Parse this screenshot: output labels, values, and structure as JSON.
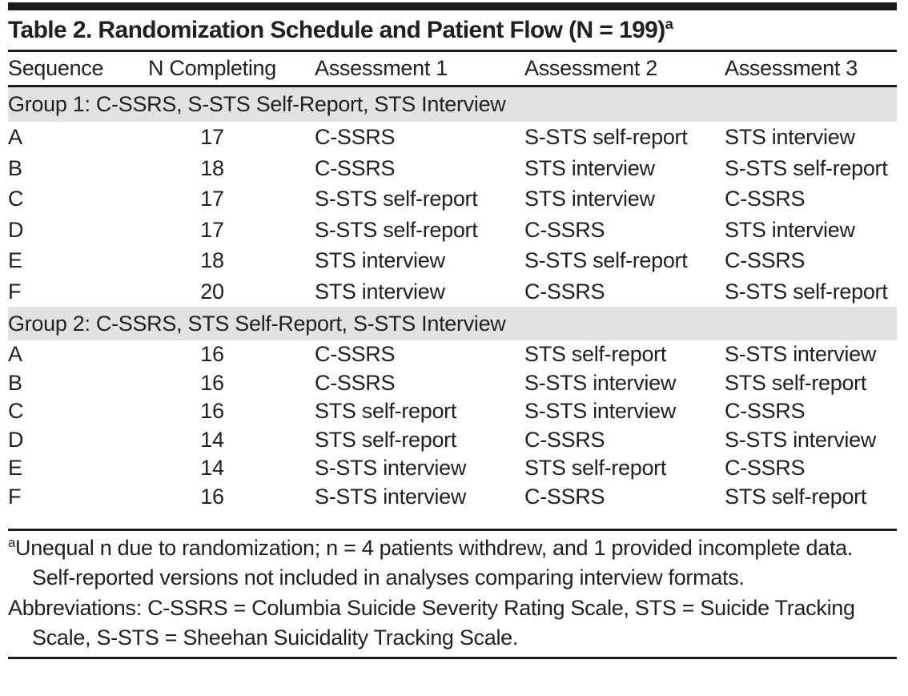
{
  "title": {
    "text": "Table 2. Randomization Schedule and Patient Flow (N = 199)",
    "superscript": "a"
  },
  "header": {
    "columns": [
      "Sequence",
      "N Completing",
      "Assessment 1",
      "Assessment 2",
      "Assessment 3"
    ]
  },
  "group1": {
    "label": "Group 1: C-SSRS, S-STS Self-Report, STS Interview",
    "rows": [
      [
        "A",
        "17",
        "C-SSRS",
        "S-STS self-report",
        "STS interview"
      ],
      [
        "B",
        "18",
        "C-SSRS",
        "STS interview",
        "S-STS self-report"
      ],
      [
        "C",
        "17",
        "S-STS self-report",
        "STS interview",
        "C-SSRS"
      ],
      [
        "D",
        "17",
        "S-STS self-report",
        "C-SSRS",
        "STS interview"
      ],
      [
        "E",
        "18",
        "STS interview",
        "S-STS self-report",
        "C-SSRS"
      ],
      [
        "F",
        "20",
        "STS interview",
        "C-SSRS",
        "S-STS self-report"
      ]
    ]
  },
  "group2": {
    "label": "Group 2: C-SSRS, STS Self-Report, S-STS Interview",
    "rows": [
      [
        "A",
        "16",
        "C-SSRS",
        "STS self-report",
        "S-STS interview"
      ],
      [
        "B",
        "16",
        "C-SSRS",
        "S-STS interview",
        "STS self-report"
      ],
      [
        "C",
        "16",
        "STS self-report",
        "S-STS interview",
        "C-SSRS"
      ],
      [
        "D",
        "14",
        "STS self-report",
        "C-SSRS",
        "S-STS interview"
      ],
      [
        "E",
        "14",
        "S-STS interview",
        "STS self-report",
        "C-SSRS"
      ],
      [
        "F",
        "16",
        "S-STS interview",
        "C-SSRS",
        "STS self-report"
      ]
    ]
  },
  "footnote": {
    "marker": "a",
    "text": "Unequal n due to randomization; n = 4 patients withdrew, and 1 provided incomplete data. Self-reported versions not included in analyses comparing interview formats.",
    "abbreviations": "Abbreviations: C-SSRS = Columbia Suicide Severity Rating Scale, STS = Suicide Tracking Scale, S-STS = Sheehan Suicidality Tracking Scale."
  },
  "colors": {
    "band": "#e2e2e2",
    "rule": "#1a1a1a",
    "text": "#231f20"
  }
}
